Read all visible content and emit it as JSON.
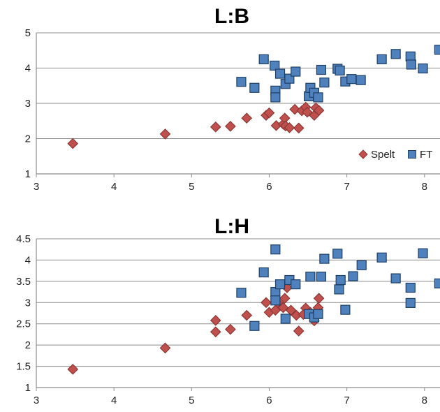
{
  "colors": {
    "spelt_fill": "#c0504d",
    "spelt_stroke": "#8c3836",
    "ft_fill": "#4f81bd",
    "ft_stroke": "#1f3f66",
    "grid": "#8c8c8c"
  },
  "chart_data": [
    {
      "type": "scatter",
      "title": "L:B",
      "xlim": [
        3,
        8.2
      ],
      "ylim": [
        1,
        5
      ],
      "xticks": [
        "3",
        "4",
        "5",
        "6",
        "7",
        "8"
      ],
      "yticks": [
        "1",
        "2",
        "3",
        "4",
        "5"
      ],
      "grid": "horizontal",
      "legend_position": "bottom-right",
      "series": [
        {
          "name": "Spelt",
          "marker": "diamond",
          "color": "#c0504d",
          "points": [
            [
              3.47,
              1.86
            ],
            [
              4.66,
              2.13
            ],
            [
              5.31,
              2.33
            ],
            [
              5.5,
              2.35
            ],
            [
              5.71,
              2.58
            ],
            [
              5.96,
              2.66
            ],
            [
              6.0,
              2.73
            ],
            [
              6.09,
              2.37
            ],
            [
              6.18,
              2.41
            ],
            [
              6.2,
              2.58
            ],
            [
              6.21,
              2.36
            ],
            [
              6.26,
              2.31
            ],
            [
              6.33,
              2.83
            ],
            [
              6.38,
              2.3
            ],
            [
              6.42,
              2.79
            ],
            [
              6.47,
              2.89
            ],
            [
              6.49,
              2.75
            ],
            [
              6.58,
              2.66
            ],
            [
              6.6,
              2.87
            ],
            [
              6.64,
              2.8
            ]
          ]
        },
        {
          "name": "FT",
          "marker": "square",
          "color": "#4f81bd",
          "points": [
            [
              5.64,
              3.61
            ],
            [
              5.81,
              3.44
            ],
            [
              5.93,
              4.25
            ],
            [
              6.07,
              4.07
            ],
            [
              6.08,
              3.36
            ],
            [
              6.08,
              3.17
            ],
            [
              6.14,
              3.84
            ],
            [
              6.21,
              3.55
            ],
            [
              6.26,
              3.7
            ],
            [
              6.34,
              3.9
            ],
            [
              6.51,
              3.2
            ],
            [
              6.53,
              3.44
            ],
            [
              6.58,
              3.3
            ],
            [
              6.63,
              3.17
            ],
            [
              6.67,
              3.95
            ],
            [
              6.71,
              3.59
            ],
            [
              6.88,
              3.98
            ],
            [
              6.91,
              3.93
            ],
            [
              6.98,
              3.62
            ],
            [
              7.06,
              3.69
            ],
            [
              7.18,
              3.66
            ],
            [
              7.45,
              4.25
            ],
            [
              7.63,
              4.4
            ],
            [
              7.82,
              4.33
            ],
            [
              7.83,
              4.1
            ],
            [
              7.98,
              3.99
            ],
            [
              8.19,
              4.52
            ]
          ]
        }
      ]
    },
    {
      "type": "scatter",
      "title": "L:H",
      "xlim": [
        3,
        8.2
      ],
      "ylim": [
        1,
        4.5
      ],
      "xticks": [
        "3",
        "4",
        "5",
        "6",
        "7",
        "8"
      ],
      "yticks": [
        "1",
        "1.5",
        "2",
        "2.5",
        "3",
        "3.5",
        "4",
        "4.5"
      ],
      "grid": "horizontal",
      "series": [
        {
          "name": "Spelt",
          "marker": "diamond",
          "color": "#c0504d",
          "points": [
            [
              3.47,
              1.43
            ],
            [
              4.66,
              1.93
            ],
            [
              5.31,
              2.58
            ],
            [
              5.31,
              2.31
            ],
            [
              5.5,
              2.37
            ],
            [
              5.71,
              2.7
            ],
            [
              5.96,
              3.0
            ],
            [
              6.0,
              2.77
            ],
            [
              6.08,
              2.82
            ],
            [
              6.11,
              3.0
            ],
            [
              6.18,
              2.88
            ],
            [
              6.2,
              3.1
            ],
            [
              6.23,
              3.35
            ],
            [
              6.28,
              2.82
            ],
            [
              6.35,
              2.7
            ],
            [
              6.38,
              2.33
            ],
            [
              6.44,
              2.72
            ],
            [
              6.47,
              2.87
            ],
            [
              6.53,
              2.77
            ],
            [
              6.58,
              2.57
            ],
            [
              6.63,
              2.88
            ],
            [
              6.64,
              3.1
            ]
          ]
        },
        {
          "name": "FT",
          "marker": "square",
          "color": "#4f81bd",
          "points": [
            [
              5.64,
              3.23
            ],
            [
              5.81,
              2.45
            ],
            [
              5.93,
              3.71
            ],
            [
              6.08,
              4.25
            ],
            [
              6.08,
              3.25
            ],
            [
              6.08,
              3.05
            ],
            [
              6.14,
              3.43
            ],
            [
              6.21,
              2.62
            ],
            [
              6.26,
              3.53
            ],
            [
              6.34,
              3.43
            ],
            [
              6.51,
              2.73
            ],
            [
              6.53,
              3.61
            ],
            [
              6.58,
              2.65
            ],
            [
              6.63,
              2.73
            ],
            [
              6.67,
              3.61
            ],
            [
              6.71,
              4.03
            ],
            [
              6.88,
              4.15
            ],
            [
              6.9,
              3.31
            ],
            [
              6.92,
              3.53
            ],
            [
              6.98,
              2.83
            ],
            [
              7.08,
              3.62
            ],
            [
              7.19,
              3.88
            ],
            [
              7.45,
              4.06
            ],
            [
              7.63,
              3.57
            ],
            [
              7.82,
              3.35
            ],
            [
              7.82,
              2.99
            ],
            [
              7.98,
              4.16
            ],
            [
              8.19,
              3.45
            ]
          ]
        }
      ]
    }
  ]
}
